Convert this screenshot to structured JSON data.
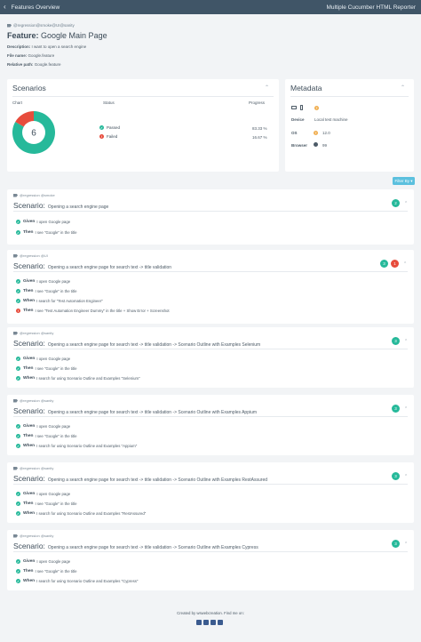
{
  "navbar": {
    "title": "Features Overview",
    "right": "Multiple Cucumber HTML Reporter",
    "back_icon": "chevron-left-icon"
  },
  "feature": {
    "tags": "@regression@smoke@UI@sanity",
    "label": "Feature:",
    "name": "Google Main Page",
    "description_label": "Description:",
    "description": "I want to open a search engine",
    "file_label": "File name:",
    "file": "Google.feature",
    "path_label": "Relative path:",
    "path": "Google.feature"
  },
  "scenarios_card": {
    "title": "Scenarios",
    "chart_header": "Chart",
    "status_header": "Status",
    "progress_header": "Progress",
    "total": "6",
    "passed_label": "Passed",
    "passed_pct": "83.33 %",
    "failed_label": "Failed",
    "failed_pct": "16.67 %"
  },
  "chart_data": {
    "type": "pie",
    "categories": [
      "Passed",
      "Failed"
    ],
    "values": [
      5,
      1
    ],
    "colors": [
      "#26b99a",
      "#e74c3c"
    ],
    "center_label": "6"
  },
  "metadata_card": {
    "title": "Metadata",
    "device_label": "Device",
    "device_value": "Local test machine",
    "os_label": "OS",
    "os_value": "12.0",
    "browser_label": "Browser",
    "browser_value": "99"
  },
  "filter_label": "Filter By ▾",
  "scenarios": [
    {
      "tags": "@regression @smoke",
      "label": "Scenario:",
      "title": "Opening a search engine page",
      "passed": "2",
      "failed": "",
      "steps": [
        {
          "kw": "Given",
          "text": "I open Google page",
          "status": "passed"
        },
        {
          "kw": "Then",
          "text": "I see \"Google\" in the title",
          "status": "passed"
        }
      ]
    },
    {
      "tags": "@regression @UI",
      "label": "Scenario:",
      "title": "Opening a search engine page for search text -> title validation",
      "passed": "3",
      "failed": "1",
      "steps": [
        {
          "kw": "Given",
          "text": "I open Google page",
          "status": "passed"
        },
        {
          "kw": "Then",
          "text": "I see \"Google\" in the title",
          "status": "passed"
        },
        {
          "kw": "When",
          "text": "I search for \"Test Automation Engineer\"",
          "status": "passed"
        },
        {
          "kw": "Then",
          "text": "I see \"Test Automation Engineer Dummy\" in the title + Show Error + Screenshot",
          "status": "failed"
        }
      ]
    },
    {
      "tags": "@regression @sanity",
      "label": "Scenario:",
      "title": "Opening a search engine page for search text -> title validation -> Scenario Outline with Examples Selenium",
      "passed": "3",
      "failed": "",
      "steps": [
        {
          "kw": "Given",
          "text": "I open Google page",
          "status": "passed"
        },
        {
          "kw": "Then",
          "text": "I see \"Google\" in the title",
          "status": "passed"
        },
        {
          "kw": "When",
          "text": "I search for using Scenario Outline and Examples \"Selenium\"",
          "status": "passed"
        }
      ]
    },
    {
      "tags": "@regression @sanity",
      "label": "Scenario:",
      "title": "Opening a search engine page for search text -> title validation -> Scenario Outline with Examples Appium",
      "passed": "3",
      "failed": "",
      "steps": [
        {
          "kw": "Given",
          "text": "I open Google page",
          "status": "passed"
        },
        {
          "kw": "Then",
          "text": "I see \"Google\" in the title",
          "status": "passed"
        },
        {
          "kw": "When",
          "text": "I search for using Scenario Outline and Examples \"Appium\"",
          "status": "passed"
        }
      ]
    },
    {
      "tags": "@regression @sanity",
      "label": "Scenario:",
      "title": "Opening a search engine page for search text -> title validation -> Scenario Outline with Examples RestAssured",
      "passed": "3",
      "failed": "",
      "steps": [
        {
          "kw": "Given",
          "text": "I open Google page",
          "status": "passed"
        },
        {
          "kw": "Then",
          "text": "I see \"Google\" in the title",
          "status": "passed"
        },
        {
          "kw": "When",
          "text": "I search for using Scenario Outline and Examples \"RestAssured\"",
          "status": "passed"
        }
      ]
    },
    {
      "tags": "@regression @sanity",
      "label": "Scenario:",
      "title": "Opening a search engine page for search text -> title validation -> Scenario Outline with Examples Cypress",
      "passed": "3",
      "failed": "",
      "steps": [
        {
          "kw": "Given",
          "text": "I open Google page",
          "status": "passed"
        },
        {
          "kw": "Then",
          "text": "I see \"Google\" in the title",
          "status": "passed"
        },
        {
          "kw": "When",
          "text": "I search for using Scenario Outline and Examples \"Cypress\"",
          "status": "passed"
        }
      ]
    }
  ],
  "footer": {
    "text": "Created by wswebcreation. Find me on:"
  }
}
